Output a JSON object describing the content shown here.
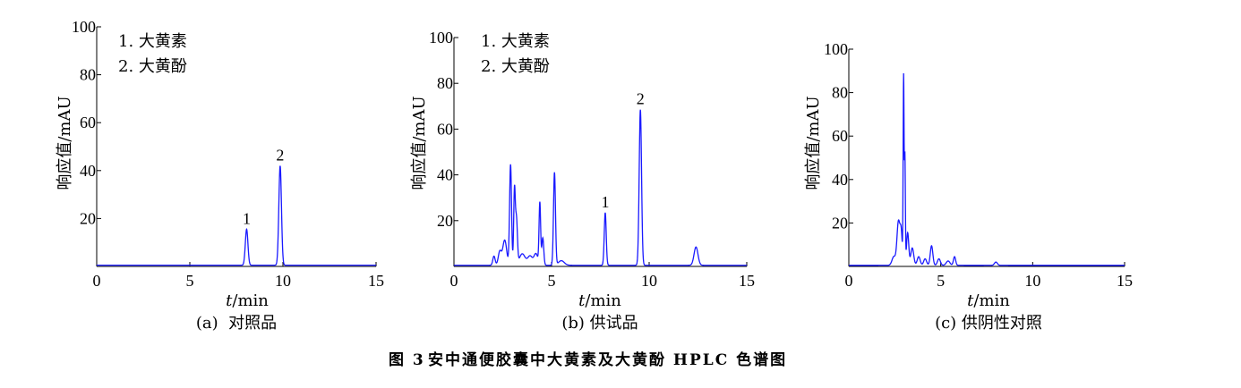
{
  "figure_caption": {
    "label": "图 3",
    "text": "安中通便胶囊中大黄素及大黄酚 HPLC 色谱图"
  },
  "chart_data": [
    {
      "type": "line",
      "caption": "(a)  对照品",
      "xlabel_var": "t",
      "xlabel_unit": "/min",
      "ylabel": "响应值/mAU",
      "xlim": [
        0,
        15
      ],
      "ylim": [
        0,
        100
      ],
      "xticks": [
        0,
        5,
        10,
        15
      ],
      "yticks": [
        20,
        40,
        60,
        80,
        100
      ],
      "legend": [
        "1. 大黄素",
        "2. 大黄酚"
      ],
      "baseline": 0.5,
      "peaks": [
        {
          "t": 8.05,
          "h": 15,
          "w": 0.07,
          "label": "1"
        },
        {
          "t": 9.85,
          "h": 41.5,
          "w": 0.07,
          "label": "2"
        }
      ]
    },
    {
      "type": "line",
      "caption": "(b) 供试品",
      "xlabel_var": "t",
      "xlabel_unit": "/min",
      "ylabel": "响应值/mAU",
      "xlim": [
        0,
        15
      ],
      "ylim": [
        0,
        100
      ],
      "xticks": [
        0,
        5,
        10,
        15
      ],
      "yticks": [
        20,
        40,
        60,
        80,
        100
      ],
      "legend": [
        "1. 大黄素",
        "2. 大黄酚"
      ],
      "baseline": 0.5,
      "peaks": [
        {
          "t": 2.05,
          "h": 4,
          "w": 0.06
        },
        {
          "t": 2.35,
          "h": 6,
          "w": 0.08
        },
        {
          "t": 2.6,
          "h": 11,
          "w": 0.1
        },
        {
          "t": 2.9,
          "h": 44,
          "w": 0.05
        },
        {
          "t": 3.1,
          "h": 32,
          "w": 0.04
        },
        {
          "t": 3.2,
          "h": 20,
          "w": 0.05
        },
        {
          "t": 3.5,
          "h": 5,
          "w": 0.15
        },
        {
          "t": 3.9,
          "h": 4,
          "w": 0.12
        },
        {
          "t": 4.2,
          "h": 5,
          "w": 0.1
        },
        {
          "t": 4.4,
          "h": 27,
          "w": 0.04
        },
        {
          "t": 4.55,
          "h": 12,
          "w": 0.05
        },
        {
          "t": 5.15,
          "h": 40.5,
          "w": 0.05
        },
        {
          "t": 5.5,
          "h": 2,
          "w": 0.15
        },
        {
          "t": 7.75,
          "h": 23,
          "w": 0.05,
          "label": "1"
        },
        {
          "t": 9.55,
          "h": 68,
          "w": 0.06,
          "label": "2"
        },
        {
          "t": 12.4,
          "h": 8,
          "w": 0.1
        }
      ]
    },
    {
      "type": "line",
      "caption": "(c) 供阴性对照",
      "xlabel_var": "t",
      "xlabel_unit": "/min",
      "ylabel": "响应值/mAU",
      "xlim": [
        0,
        15
      ],
      "ylim": [
        0,
        100
      ],
      "xticks": [
        0,
        5,
        10,
        15
      ],
      "yticks": [
        20,
        40,
        60,
        80,
        100
      ],
      "legend": [],
      "baseline": 0.5,
      "peaks": [
        {
          "t": 2.45,
          "h": 4,
          "w": 0.1
        },
        {
          "t": 2.7,
          "h": 20,
          "w": 0.08
        },
        {
          "t": 2.85,
          "h": 14,
          "w": 0.06
        },
        {
          "t": 2.98,
          "h": 86,
          "w": 0.025
        },
        {
          "t": 3.05,
          "h": 50,
          "w": 0.025
        },
        {
          "t": 3.2,
          "h": 15,
          "w": 0.06
        },
        {
          "t": 3.45,
          "h": 8,
          "w": 0.08
        },
        {
          "t": 3.8,
          "h": 4,
          "w": 0.08
        },
        {
          "t": 4.15,
          "h": 3,
          "w": 0.08
        },
        {
          "t": 4.5,
          "h": 9,
          "w": 0.07
        },
        {
          "t": 4.9,
          "h": 3,
          "w": 0.08
        },
        {
          "t": 5.4,
          "h": 2,
          "w": 0.1
        },
        {
          "t": 5.75,
          "h": 4,
          "w": 0.06
        },
        {
          "t": 8.0,
          "h": 1.5,
          "w": 0.08
        }
      ]
    }
  ],
  "colors": {
    "trace": "#1a1aff",
    "axis": "#000000"
  }
}
